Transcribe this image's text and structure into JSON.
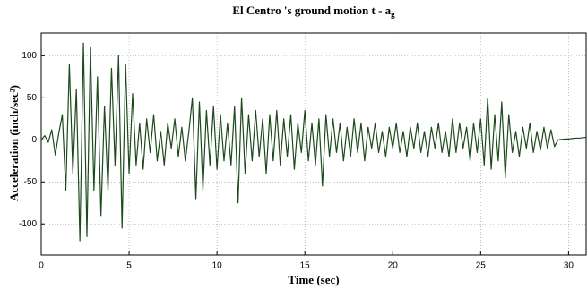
{
  "chart_data": {
    "type": "line",
    "title": "El Centro 's ground motion t - a",
    "title_subscript": "g",
    "x_label": "Time (sec)",
    "y_label": "Acceleration (inch/sec²)",
    "grid": true,
    "xlim": [
      0,
      31
    ],
    "ylim": [
      -137,
      127
    ],
    "xticks": [
      0,
      5,
      10,
      15,
      20,
      25,
      30
    ],
    "yticks": [
      -100,
      -50,
      0,
      50,
      100
    ],
    "x": [
      0,
      0.2,
      0.4,
      0.6,
      0.8,
      1,
      1.2,
      1.4,
      1.6,
      1.8,
      2,
      2.2,
      2.4,
      2.6,
      2.8,
      3,
      3.2,
      3.4,
      3.6,
      3.8,
      4,
      4.2,
      4.4,
      4.6,
      4.8,
      5,
      5.2,
      5.4,
      5.6,
      5.8,
      6,
      6.2,
      6.4,
      6.6,
      6.8,
      7,
      7.2,
      7.4,
      7.6,
      7.8,
      8,
      8.2,
      8.4,
      8.6,
      8.8,
      9,
      9.2,
      9.4,
      9.6,
      9.8,
      10,
      10.2,
      10.4,
      10.6,
      10.8,
      11,
      11.2,
      11.4,
      11.6,
      11.8,
      12,
      12.2,
      12.4,
      12.6,
      12.8,
      13,
      13.2,
      13.4,
      13.6,
      13.8,
      14,
      14.2,
      14.4,
      14.6,
      14.8,
      15,
      15.2,
      15.4,
      15.6,
      15.8,
      16,
      16.2,
      16.4,
      16.6,
      16.8,
      17,
      17.2,
      17.4,
      17.6,
      17.8,
      18,
      18.2,
      18.4,
      18.6,
      18.8,
      19,
      19.2,
      19.4,
      19.6,
      19.8,
      20,
      20.2,
      20.4,
      20.6,
      20.8,
      21,
      21.2,
      21.4,
      21.6,
      21.8,
      22,
      22.2,
      22.4,
      22.6,
      22.8,
      23,
      23.2,
      23.4,
      23.6,
      23.8,
      24,
      24.2,
      24.4,
      24.6,
      24.8,
      25,
      25.2,
      25.4,
      25.6,
      25.8,
      26,
      26.2,
      26.4,
      26.6,
      26.8,
      27,
      27.2,
      27.4,
      27.6,
      27.8,
      28,
      28.2,
      28.4,
      28.6,
      28.8,
      29,
      29.2,
      29.4,
      29.6,
      29.8,
      30,
      30.2,
      30.4,
      30.6,
      30.8,
      31
    ],
    "series": [
      {
        "name": "a_g",
        "color": "#1a4a1a",
        "values": [
          0,
          5,
          -3,
          12,
          -18,
          8,
          30,
          -60,
          90,
          -40,
          60,
          -120,
          115,
          -115,
          110,
          -60,
          75,
          -90,
          40,
          -60,
          85,
          -30,
          100,
          -105,
          90,
          -40,
          55,
          -30,
          20,
          -35,
          25,
          -15,
          30,
          -25,
          10,
          -30,
          20,
          -10,
          25,
          -20,
          15,
          -25,
          10,
          50,
          -70,
          45,
          -60,
          35,
          -30,
          40,
          -35,
          30,
          -25,
          20,
          -30,
          40,
          -75,
          50,
          -40,
          30,
          -25,
          35,
          -20,
          25,
          -40,
          30,
          -25,
          35,
          -30,
          25,
          -20,
          30,
          -35,
          20,
          -15,
          35,
          -25,
          20,
          -30,
          25,
          -55,
          30,
          -20,
          25,
          -15,
          20,
          -25,
          15,
          -20,
          25,
          -15,
          20,
          -25,
          15,
          -10,
          20,
          -15,
          10,
          -20,
          15,
          -10,
          20,
          -15,
          10,
          -20,
          15,
          -10,
          20,
          -15,
          10,
          -20,
          15,
          -10,
          20,
          -15,
          10,
          -20,
          25,
          -15,
          20,
          -10,
          15,
          -25,
          20,
          -15,
          25,
          -30,
          50,
          -35,
          30,
          -25,
          45,
          -45,
          30,
          -15,
          10,
          -20,
          15,
          -10,
          20,
          -15,
          10,
          -12,
          15,
          -10,
          12,
          -8,
          0,
          0.5,
          1,
          1,
          1.5,
          2,
          2,
          2.5,
          3
        ]
      }
    ]
  }
}
